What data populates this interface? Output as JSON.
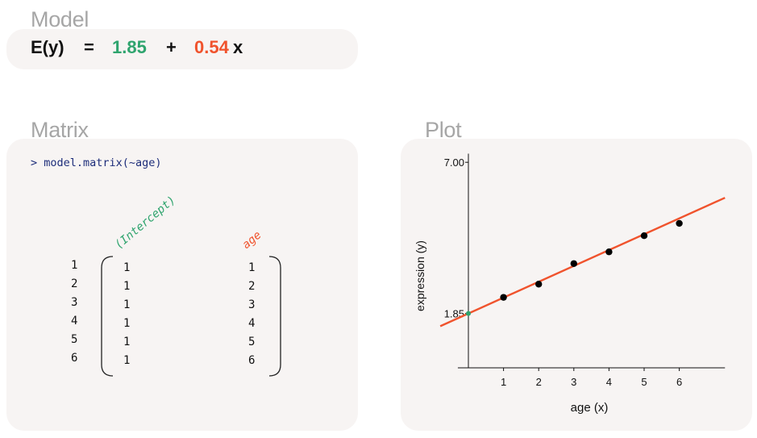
{
  "model": {
    "title": "Model",
    "lhs": "E(y)",
    "equals": "=",
    "intercept": "1.85",
    "plus": "+",
    "slope": "0.54",
    "var": "x"
  },
  "matrix": {
    "title": "Matrix",
    "command": "> model.matrix(~age)",
    "columns": [
      "(Intercept)",
      "age"
    ],
    "row_names": [
      "1",
      "2",
      "3",
      "4",
      "5",
      "6"
    ],
    "intercept_values": [
      "1",
      "1",
      "1",
      "1",
      "1",
      "1"
    ],
    "age_values": [
      "1",
      "2",
      "3",
      "4",
      "5",
      "6"
    ]
  },
  "plot": {
    "title": "Plot"
  },
  "colors": {
    "intercept": "#2fa46e",
    "slope": "#f0532d",
    "panel": "#f7f4f3",
    "title": "#a6a6a6",
    "code": "#1d2d7a"
  },
  "chart_data": {
    "type": "scatter",
    "xlabel": "age (x)",
    "ylabel": "expression (y)",
    "x_ticks": [
      1,
      2,
      3,
      4,
      5,
      6
    ],
    "y_tick_labels": [
      "1.85",
      "7.00"
    ],
    "y_ticks": [
      1.85,
      7.0
    ],
    "points": [
      {
        "x": 1,
        "y": 2.4
      },
      {
        "x": 2,
        "y": 2.85
      },
      {
        "x": 3,
        "y": 3.55
      },
      {
        "x": 4,
        "y": 3.95
      },
      {
        "x": 5,
        "y": 4.5
      },
      {
        "x": 6,
        "y": 4.92
      }
    ],
    "fit_line": {
      "intercept": 1.85,
      "slope": 0.54,
      "x_range": [
        -0.8,
        7.3
      ]
    },
    "xlim": [
      -0.8,
      7.3
    ],
    "ylim": [
      0,
      7.35
    ]
  }
}
